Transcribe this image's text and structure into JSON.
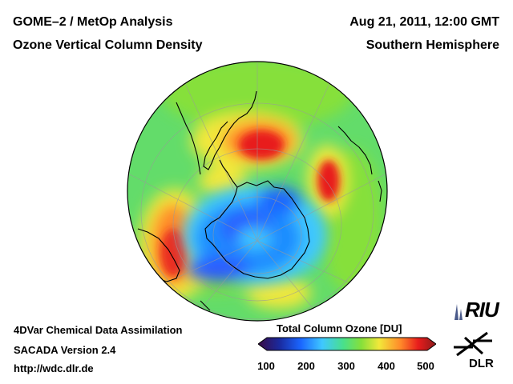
{
  "header": {
    "title_line1": "GOME–2 / MetOp Analysis",
    "title_line2": "Ozone Vertical Column Density",
    "date": "Aug 21, 2011, 12:00 GMT",
    "region": "Southern Hemisphere"
  },
  "footer": {
    "line1": "4DVar Chemical Data Assimilation",
    "line2": "SACADA Version 2.4",
    "line3": "http://wdc.dlr.de"
  },
  "colorbar": {
    "title": "Total Column Ozone [DU]",
    "ticks": [
      "100",
      "200",
      "300",
      "400",
      "500"
    ],
    "min": 100,
    "max": 500,
    "colors": [
      "#3a0a44",
      "#1a2a9e",
      "#1a66ff",
      "#3fc8ff",
      "#49e08a",
      "#86e03a",
      "#f2e83a",
      "#ff8a2a",
      "#e81c1c",
      "#8a1a1a"
    ]
  },
  "logos": {
    "riu": "RIU",
    "dlr": "DLR"
  },
  "map": {
    "projection": "orthographic, south polar view",
    "ozone_hole_center_du": 180,
    "background_du": 280,
    "peak_du": 420
  }
}
